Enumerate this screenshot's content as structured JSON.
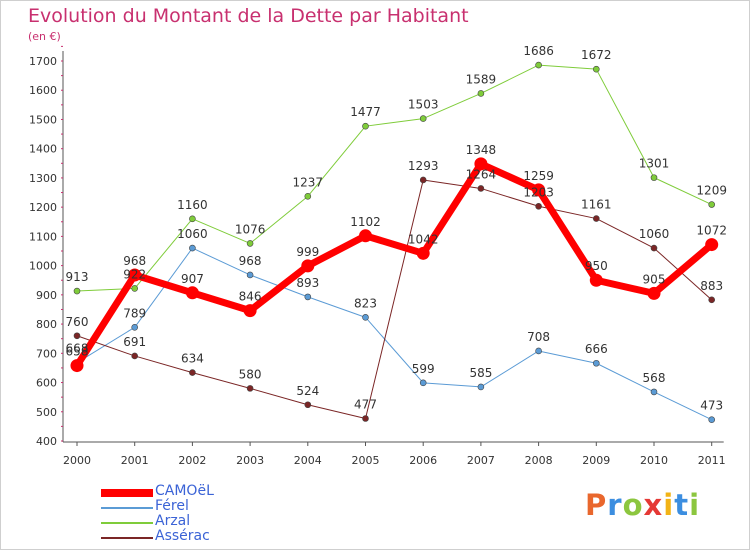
{
  "title": "Evolution du Montant de la Dette par Habitant",
  "subtitle": "(en €)",
  "logo": {
    "letters": [
      "P",
      "r",
      "o",
      "x",
      "i",
      "t",
      "i"
    ],
    "colors": [
      "#e9672d",
      "#3c8ee0",
      "#8cc63f",
      "#e53935",
      "#f2b316",
      "#3c8ee0",
      "#8cc63f"
    ]
  },
  "chart_data": {
    "type": "line",
    "title": "Evolution du Montant de la Dette par Habitant",
    "subtitle": "(en €)",
    "categories": [
      "2000",
      "2001",
      "2002",
      "2003",
      "2004",
      "2005",
      "2006",
      "2007",
      "2008",
      "2009",
      "2010",
      "2011"
    ],
    "ylim": [
      400,
      1750
    ],
    "yticks": [
      400,
      500,
      600,
      700,
      800,
      900,
      1000,
      1100,
      1200,
      1300,
      1400,
      1500,
      1600,
      1700
    ],
    "grid": false,
    "legend_position": "bottom-left",
    "series": [
      {
        "name": "CAMOëL",
        "values": [
          658,
          968,
          907,
          846,
          999,
          1102,
          1042,
          1348,
          1259,
          950,
          905,
          1072
        ],
        "color": "#ff0000",
        "width": 7
      },
      {
        "name": "Férel",
        "values": [
          668,
          789,
          1060,
          968,
          893,
          823,
          599,
          585,
          708,
          666,
          568,
          473
        ],
        "color": "#5b9bd5",
        "width": 1
      },
      {
        "name": "Arzal",
        "values": [
          913,
          922,
          1160,
          1076,
          1237,
          1477,
          1503,
          1589,
          1686,
          1672,
          1301,
          1209
        ],
        "color": "#7fcc3a",
        "width": 1
      },
      {
        "name": "Assérac",
        "values": [
          760,
          691,
          634,
          580,
          524,
          477,
          1293,
          1264,
          1203,
          1161,
          1060,
          883
        ],
        "color": "#7b2626",
        "width": 1
      }
    ]
  }
}
